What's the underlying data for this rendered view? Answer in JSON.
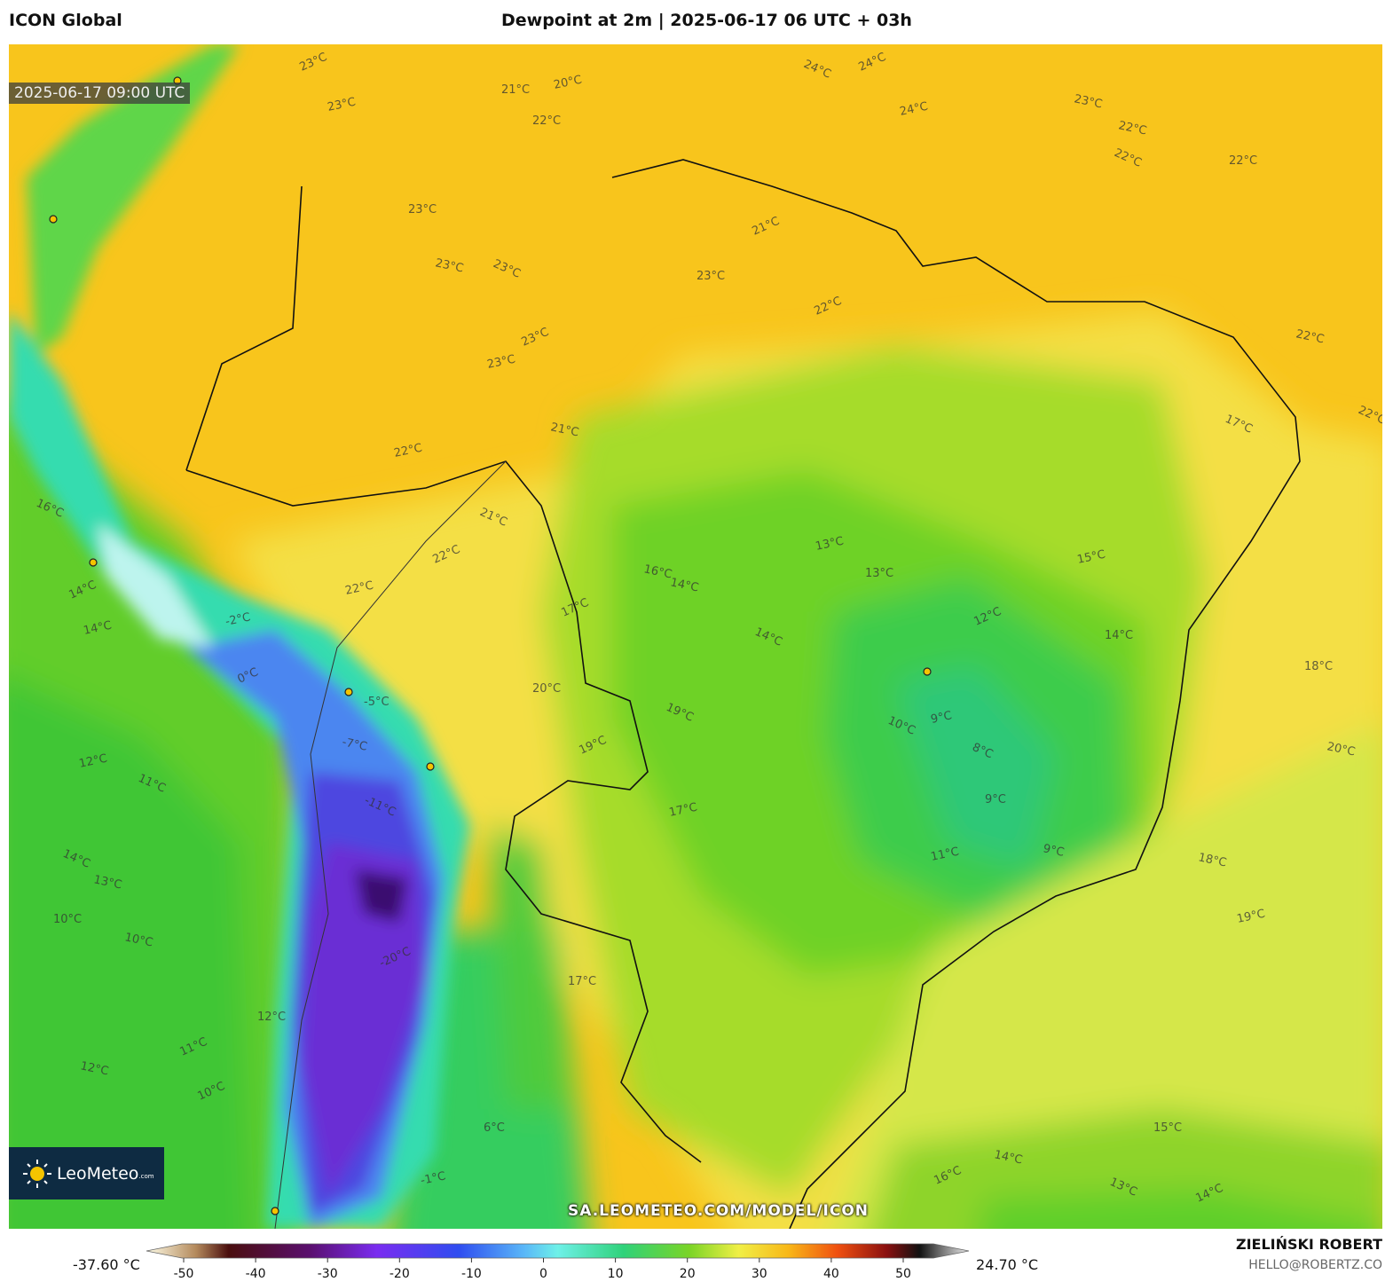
{
  "header": {
    "model": "ICON Global",
    "title": "Dewpoint at 2m | 2025-06-17 06 UTC + 03h"
  },
  "map": {
    "timestamp": "2025-06-17 09:00 UTC",
    "watermark": "SA.LEOMETEO.COM/MODEL/ICON",
    "logo": {
      "name": "LeoMeteo",
      "suffix": ".com"
    },
    "contour_labels": [
      "23°C",
      "23°C",
      "23°C",
      "23°C",
      "23°C",
      "23°C",
      "23°C",
      "23°C",
      "23°C",
      "24°C",
      "24°C",
      "24°C",
      "22°C",
      "22°C",
      "22°C",
      "22°C",
      "22°C",
      "22°C",
      "22°C",
      "22°C",
      "22°C",
      "22°C",
      "21°C",
      "21°C",
      "21°C",
      "21°C",
      "20°C",
      "20°C",
      "20°C",
      "19°C",
      "19°C",
      "19°C",
      "18°C",
      "18°C",
      "17°C",
      "17°C",
      "17°C",
      "17°C",
      "16°C",
      "16°C",
      "16°C",
      "15°C",
      "15°C",
      "14°C",
      "14°C",
      "14°C",
      "14°C",
      "14°C",
      "14°C",
      "14°C",
      "14°C",
      "13°C",
      "13°C",
      "13°C",
      "13°C",
      "12°C",
      "12°C",
      "12°C",
      "12°C",
      "11°C",
      "11°C",
      "11°C",
      "10°C",
      "10°C",
      "10°C",
      "10°C",
      "9°C",
      "9°C",
      "9°C",
      "8°C",
      "0°C",
      "-2°C",
      "-5°C",
      "-7°C",
      "-11°C",
      "-20°C",
      "-1°C",
      "6°C"
    ]
  },
  "colorbar": {
    "min_label": "-37.60 °C",
    "max_label": "24.70 °C",
    "ticks": [
      -50,
      -40,
      -30,
      -20,
      -10,
      0,
      10,
      20,
      30,
      40,
      50
    ]
  },
  "footer": {
    "author": "ZIELIŃSKI ROBERT",
    "email": "HELLO@ROBERTZ.CO"
  }
}
